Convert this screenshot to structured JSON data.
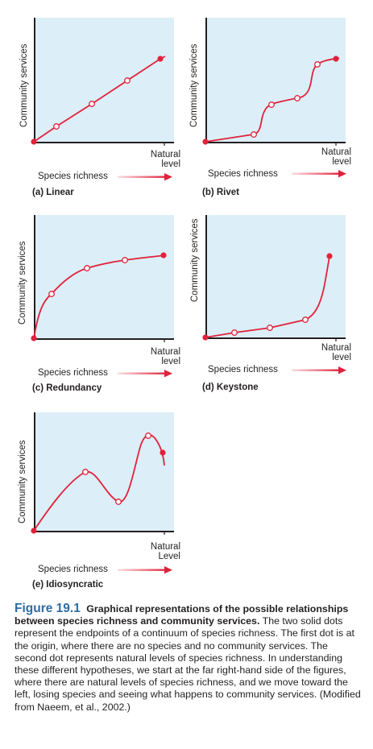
{
  "colors": {
    "plot_bg": "#dceef8",
    "curve": "#e0223a",
    "axis": "#231f20",
    "figure_label": "#2e6da4"
  },
  "panels": [
    {
      "id": "linear",
      "ylabel": "Community services",
      "xlabel": "Species richness",
      "natural_line1": "Natural",
      "natural_line2": "level",
      "tag": "(a) Linear",
      "curve_type": "linear"
    },
    {
      "id": "rivet",
      "ylabel": "Community services",
      "xlabel": "Species richness",
      "natural_line1": "Natural",
      "natural_line2": "level",
      "tag": "(b) Rivet",
      "curve_type": "rivet"
    },
    {
      "id": "redundancy",
      "ylabel": "Community services",
      "xlabel": "Species richness",
      "natural_line1": "Natural",
      "natural_line2": "level",
      "tag": "(c) Redundancy",
      "curve_type": "redundancy"
    },
    {
      "id": "keystone",
      "ylabel": "Community services",
      "xlabel": "Species richness",
      "natural_line1": "Natural",
      "natural_line2": "level",
      "tag": "(d) Keystone",
      "curve_type": "keystone"
    },
    {
      "id": "idiosyncratic",
      "ylabel": "Community services",
      "xlabel": "Species richness",
      "natural_line1": "Natural",
      "natural_line2": "Level",
      "tag": "(e) Idiosyncratic",
      "curve_type": "idiosyncratic"
    }
  ],
  "caption": {
    "figure_number": "Figure 19.1",
    "title": "Graphical representations of the possible relationships between species richness and community services.",
    "body": "The two solid dots represent the endpoints of a continuum of species richness. The first dot is at the origin, where there are no species and no community services. The second dot represents natural levels of species richness. In understanding these different hypotheses, we start at the far right-hand side of the figures, where there are natural levels of species richness, and we move toward the left, losing species and seeing what happens to community services. (Modified from Naeem, et al., 2002.)"
  }
}
